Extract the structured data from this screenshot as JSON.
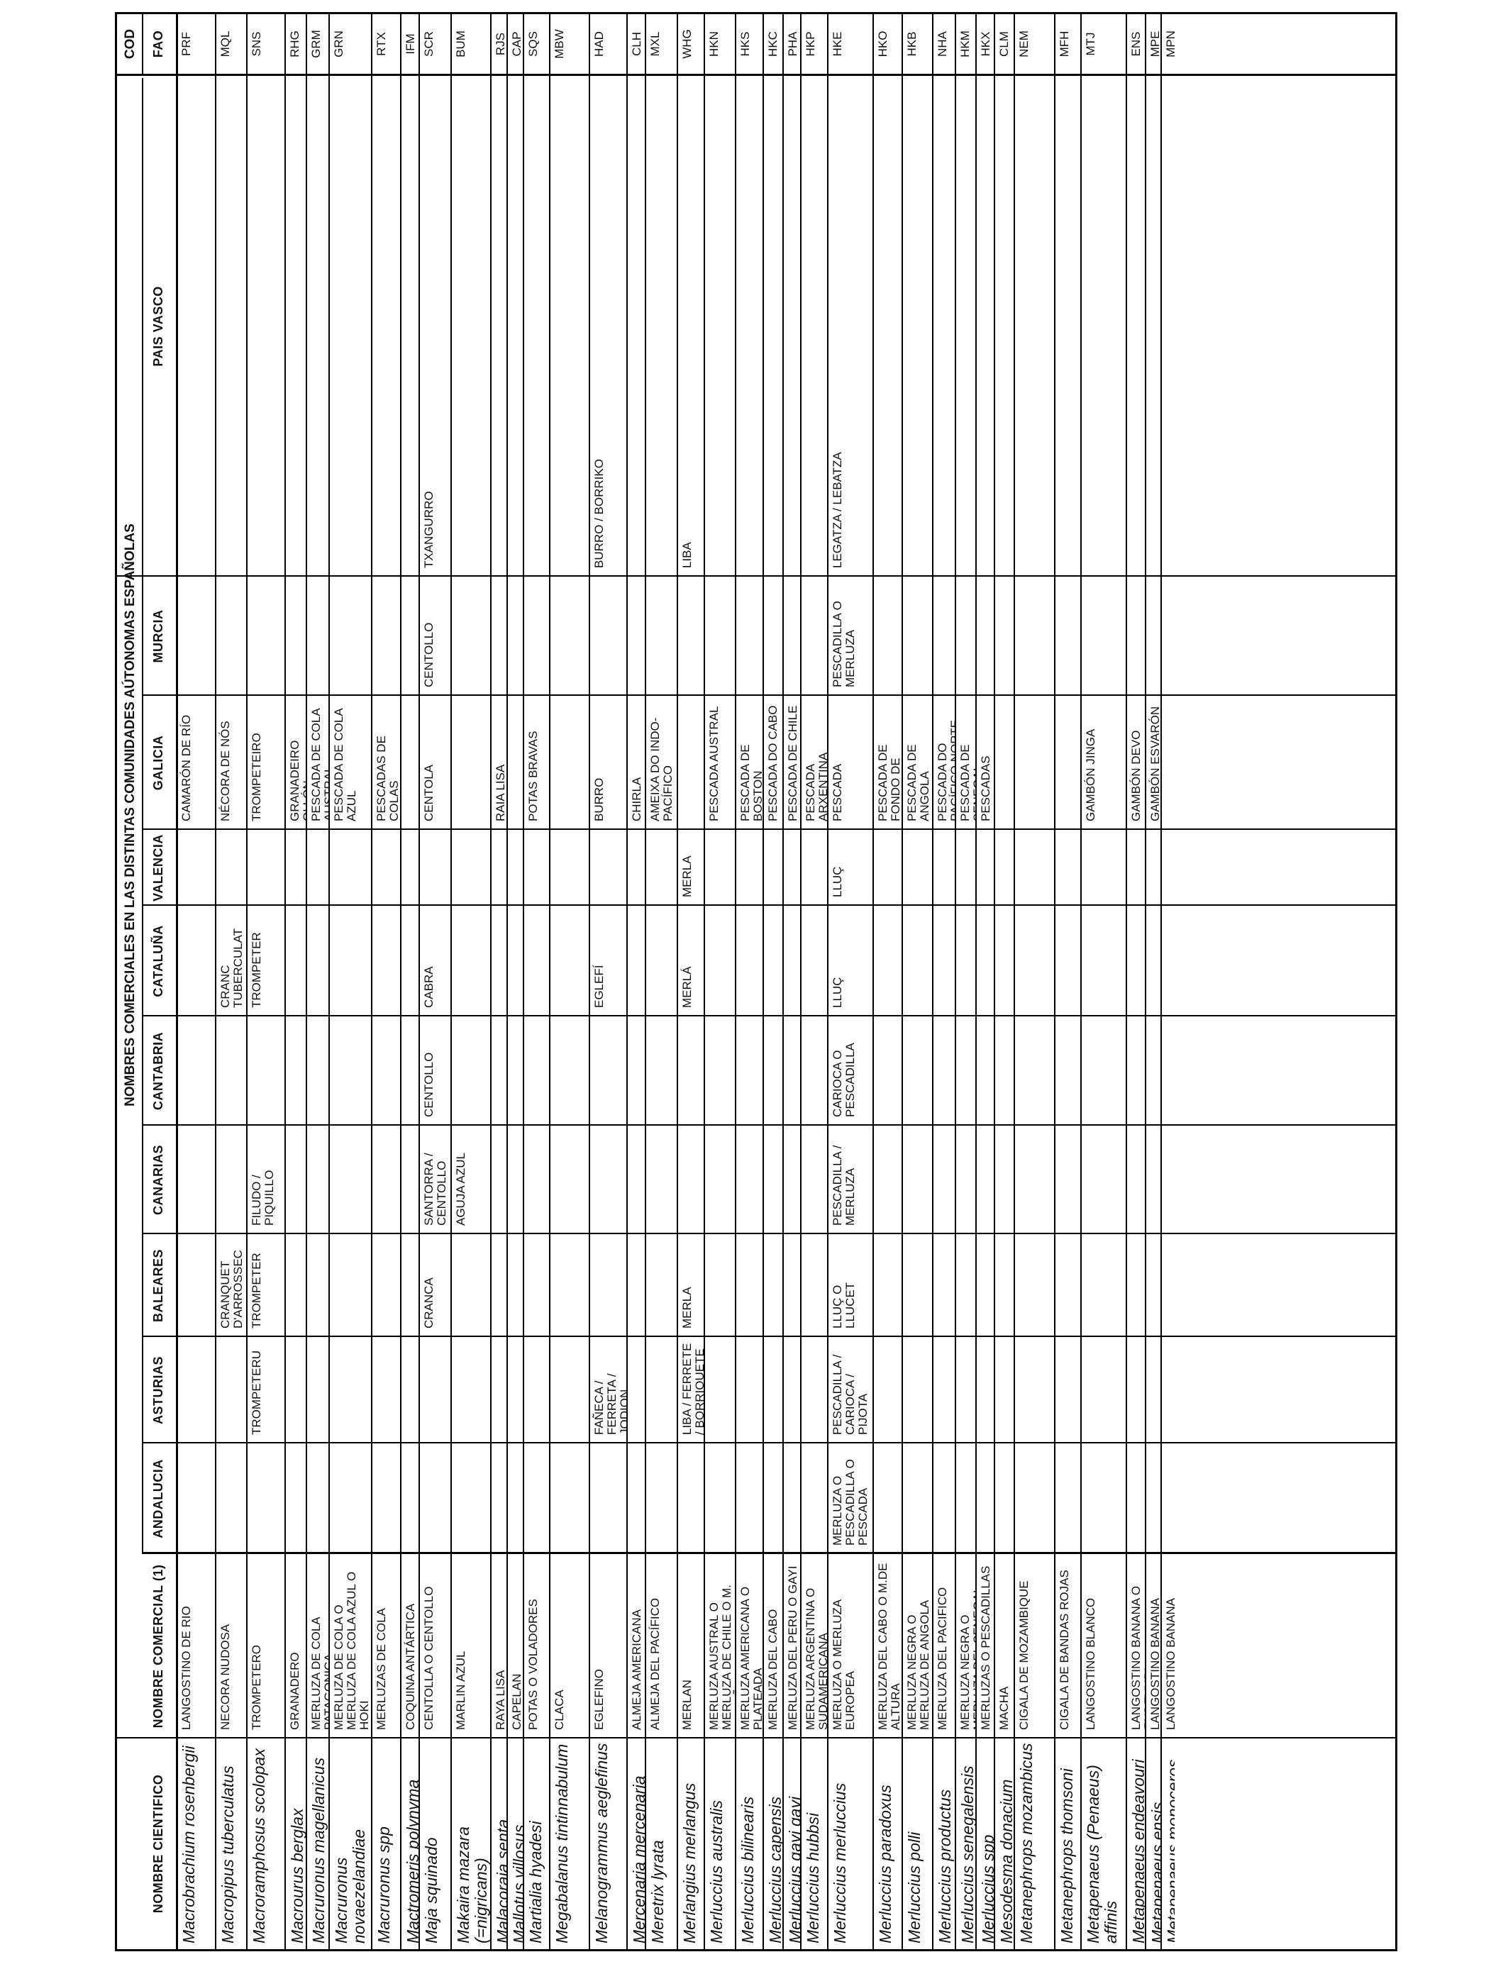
{
  "title": "NOMBRES COMERCIALES EN LAS DISTINTAS COMUNIDADES AÚTONOMAS ESPAÑOLAS",
  "cod_label": "COD",
  "columns": {
    "sci": "NOMBRE CIENTIFICO",
    "com": "NOMBRE COMERCIAL (1)",
    "andalucia": "ANDALUCIA",
    "asturias": "ASTURIAS",
    "baleares": "BALEARES",
    "canarias": "CANARIAS",
    "cantabria": "CANTABRIA",
    "cataluna": "CATALUÑA",
    "valencia": "VALENCIA",
    "galicia": "GALICIA",
    "murcia": "MURCIA",
    "paisvasco": "PAIS VASCO",
    "fao": "FAO"
  },
  "rows": [
    {
      "sci": "Macrobrachium rosenbergii",
      "com": "LANGOSTINO DE RIO",
      "andalucia": "",
      "asturias": "",
      "baleares": "",
      "canarias": "",
      "cantabria": "",
      "cataluna": "",
      "valencia": "",
      "galicia": "CAMARÓN DE RÍO",
      "murcia": "",
      "paisvasco": "",
      "fao": "PRF"
    },
    {
      "sci": "Macropipus tuberculatus",
      "com": "NECORA NUDOSA",
      "andalucia": "",
      "asturias": "",
      "baleares": "CRANQUET D'ARROSSEC",
      "canarias": "",
      "cantabria": "",
      "cataluna": "CRANC TUBERCULAT",
      "valencia": "",
      "galicia": "NÉCORA DE NÓS",
      "murcia": "",
      "paisvasco": "",
      "fao": "MQL"
    },
    {
      "sci": "Macroramphosus scolopax",
      "com": "TROMPETERO",
      "andalucia": "",
      "asturias": "TROMPETERU",
      "baleares": "TROMPETER",
      "canarias": "FILUDO / PIQUILLO",
      "cantabria": "",
      "cataluna": "TROMPETER",
      "valencia": "",
      "galicia": "TROMPETEIRO",
      "murcia": "",
      "paisvasco": "",
      "fao": "SNS"
    },
    {
      "sci": "Macrourus berglax",
      "com": "GRANADERO",
      "andalucia": "",
      "asturias": "",
      "baleares": "",
      "canarias": "",
      "cantabria": "",
      "cataluna": "",
      "valencia": "",
      "galicia": "GRANADEIRO OLLÓN",
      "murcia": "",
      "paisvasco": "",
      "fao": "RHG"
    },
    {
      "sci": "Macruronus magellanicus",
      "com": "MERLUZA DE COLA PATAGONICA",
      "andalucia": "",
      "asturias": "",
      "baleares": "",
      "canarias": "",
      "cantabria": "",
      "cataluna": "",
      "valencia": "",
      "galicia": "PESCADA DE COLA AUSTRAL",
      "murcia": "",
      "paisvasco": "",
      "fao": "GRM"
    },
    {
      "sci": "Macruronus novaezelandiae",
      "com": "MERLUZA DE COLA  O  MERLUZA DE COLA AZUL O HOKI",
      "andalucia": "",
      "asturias": "",
      "baleares": "",
      "canarias": "",
      "cantabria": "",
      "cataluna": "",
      "valencia": "",
      "galicia": "PESCADA DE COLA AZUL",
      "murcia": "",
      "paisvasco": "",
      "fao": "GRN"
    },
    {
      "sci": "Macruronus  spp",
      "com": "MERLUZAS DE COLA",
      "andalucia": "",
      "asturias": "",
      "baleares": "",
      "canarias": "",
      "cantabria": "",
      "cataluna": "",
      "valencia": "",
      "galicia": "PESCADAS DE COLAS",
      "murcia": "",
      "paisvasco": "",
      "fao": "RTX"
    },
    {
      "sci": "Mactromeris polynyma",
      "com": "COQUINA ANTÁRTICA",
      "andalucia": "",
      "asturias": "",
      "baleares": "",
      "canarias": "",
      "cantabria": "",
      "cataluna": "",
      "valencia": "",
      "galicia": "",
      "murcia": "",
      "paisvasco": "",
      "fao": "IFM"
    },
    {
      "sci": "Maja squinado",
      "com": "CENTOLLA O CENTOLLO",
      "andalucia": "",
      "asturias": "",
      "baleares": "CRANCA",
      "canarias": "SANTORRA / CENTOLLO",
      "cantabria": "CENTOLLO",
      "cataluna": "CABRA",
      "valencia": "",
      "galicia": "CENTOLA",
      "murcia": "CENTOLLO",
      "paisvasco": "TXANGURRO",
      "fao": "SCR"
    },
    {
      "sci": "Makaira mazara (=nigricans)",
      "com": "MARLIN AZUL",
      "andalucia": "",
      "asturias": "",
      "baleares": "",
      "canarias": "AGUJA AZUL",
      "cantabria": "",
      "cataluna": "",
      "valencia": "",
      "galicia": "",
      "murcia": "",
      "paisvasco": "",
      "fao": "BUM"
    },
    {
      "sci": "Malacoraja senta",
      "com": "RAYA LISA",
      "andalucia": "",
      "asturias": "",
      "baleares": "",
      "canarias": "",
      "cantabria": "",
      "cataluna": "",
      "valencia": "",
      "galicia": "RAIA LISA",
      "murcia": "",
      "paisvasco": "",
      "fao": "RJS"
    },
    {
      "sci": "Mallotus villosus",
      "com": "CAPELAN",
      "andalucia": "",
      "asturias": "",
      "baleares": "",
      "canarias": "",
      "cantabria": "",
      "cataluna": "",
      "valencia": "",
      "galicia": "",
      "murcia": "",
      "paisvasco": "",
      "fao": "CAP"
    },
    {
      "sci": "Martialia hyadesi",
      "com": "POTAS O VOLADORES",
      "andalucia": "",
      "asturias": "",
      "baleares": "",
      "canarias": "",
      "cantabria": "",
      "cataluna": "",
      "valencia": "",
      "galicia": "POTAS BRAVAS",
      "murcia": "",
      "paisvasco": "",
      "fao": "SQS"
    },
    {
      "sci": "Megabalanus tintinnabulum",
      "com": "CLACA",
      "andalucia": "",
      "asturias": "",
      "baleares": "",
      "canarias": "",
      "cantabria": "",
      "cataluna": "",
      "valencia": "",
      "galicia": "",
      "murcia": "",
      "paisvasco": "",
      "fao": "MBW"
    },
    {
      "sci": "Melanogrammus aeglefinus",
      "com": "EGLEFINO",
      "andalucia": "",
      "asturias": "FAÑECA / FERRETA / JODION",
      "baleares": "",
      "canarias": "",
      "cantabria": "",
      "cataluna": "EGLEFÍ",
      "valencia": "",
      "galicia": "BURRO",
      "murcia": "",
      "paisvasco": "BURRO / BORRIKO",
      "fao": "HAD"
    },
    {
      "sci": "Mercenaria mercenaria",
      "com": "ALMEJA AMERICANA",
      "andalucia": "",
      "asturias": "",
      "baleares": "",
      "canarias": "",
      "cantabria": "",
      "cataluna": "",
      "valencia": "",
      "galicia": "CHIRLA MERCENARIA",
      "murcia": "",
      "paisvasco": "",
      "fao": "CLH"
    },
    {
      "sci": "Meretrix lyrata",
      "com": "ALMEJA DEL PACÍFICO",
      "andalucia": "",
      "asturias": "",
      "baleares": "",
      "canarias": "",
      "cantabria": "",
      "cataluna": "",
      "valencia": "",
      "galicia": "AMEIXA DO INDO-PACÍFICO",
      "murcia": "",
      "paisvasco": "",
      "fao": "MXL"
    },
    {
      "sci": "Merlangius merlangus",
      "com": "MERLAN",
      "andalucia": "",
      "asturias": "LIBA / FERRETE / BORRIQUETE",
      "baleares": "MERLA",
      "canarias": "",
      "cantabria": "",
      "cataluna": "MERLÁ",
      "valencia": "MERLA",
      "galicia": "",
      "murcia": "",
      "paisvasco": "LIBA",
      "fao": "WHG"
    },
    {
      "sci": "Merluccius australis",
      "com": "MERLUZA AUSTRAL O MERLUZA DE CHILE O M. SUREÑA",
      "andalucia": "",
      "asturias": "",
      "baleares": "",
      "canarias": "",
      "cantabria": "",
      "cataluna": "",
      "valencia": "",
      "galicia": "PESCADA AUSTRAL",
      "murcia": "",
      "paisvasco": "",
      "fao": "HKN"
    },
    {
      "sci": "Merluccius bilinearis",
      "com": "MERLUZA AMERICANA O PLATEADA",
      "andalucia": "",
      "asturias": "",
      "baleares": "",
      "canarias": "",
      "cantabria": "",
      "cataluna": "",
      "valencia": "",
      "galicia": "PESCADA DE BOSTON",
      "murcia": "",
      "paisvasco": "",
      "fao": "HKS"
    },
    {
      "sci": "Merluccius capensis",
      "com": "MERLUZA DEL CABO",
      "andalucia": "",
      "asturias": "",
      "baleares": "",
      "canarias": "",
      "cantabria": "",
      "cataluna": "",
      "valencia": "",
      "galicia": "PESCADA DO CABO",
      "murcia": "",
      "paisvasco": "",
      "fao": "HKC"
    },
    {
      "sci": "Merluccius gayi gayi",
      "com": "MERLUZA DEL PERU O GAYI",
      "andalucia": "",
      "asturias": "",
      "baleares": "",
      "canarias": "",
      "cantabria": "",
      "cataluna": "",
      "valencia": "",
      "galicia": "PESCADA DE CHILE",
      "murcia": "",
      "paisvasco": "",
      "fao": "PHA"
    },
    {
      "sci": "Merluccius hubbsi",
      "com": "MERLUZA ARGENTINA O SUDAMERICANA",
      "andalucia": "",
      "asturias": "",
      "baleares": "",
      "canarias": "",
      "cantabria": "",
      "cataluna": "",
      "valencia": "",
      "galicia": "PESCADA ARXENTINA",
      "murcia": "",
      "paisvasco": "",
      "fao": "HKP"
    },
    {
      "sci": "Merluccius merluccius",
      "com": "MERLUZA O MERLUZA EUROPEA",
      "andalucia": "MERLUZA O PESCADILLA O PESCADA",
      "asturias": "PESCADILLA / CARIOCA / PIJOTA",
      "baleares": "LLUÇ O LLUCET",
      "canarias": "PESCADILLA / MERLUZA",
      "cantabria": "CARIOCA O PESCADILLA",
      "cataluna": "LLUÇ",
      "valencia": "LLUÇ",
      "galicia": "PESCADA",
      "murcia": "PESCADILLA O MERLUZA",
      "paisvasco": "LEGATZA / LEBATZA",
      "fao": "HKE"
    },
    {
      "sci": "Merluccius paradoxus",
      "com": "MERLUZA DEL CABO O M.DE ALTURA",
      "andalucia": "",
      "asturias": "",
      "baleares": "",
      "canarias": "",
      "cantabria": "",
      "cataluna": "",
      "valencia": "",
      "galicia": "PESCADA DE FONDO DE SUDAFRICA",
      "murcia": "",
      "paisvasco": "",
      "fao": "HKO"
    },
    {
      "sci": "Merluccius polli",
      "com": "MERLUZA NEGRA O MERLUZA DE ANGOLA",
      "andalucia": "",
      "asturias": "",
      "baleares": "",
      "canarias": "",
      "cantabria": "",
      "cataluna": "",
      "valencia": "",
      "galicia": "PESCADA DE ANGOLA",
      "murcia": "",
      "paisvasco": "",
      "fao": "HKB"
    },
    {
      "sci": "Merluccius productus",
      "com": "MERLUZA DEL PACIFICO",
      "andalucia": "",
      "asturias": "",
      "baleares": "",
      "canarias": "",
      "cantabria": "",
      "cataluna": "",
      "valencia": "",
      "galicia": "PESCADA DO PACÍFICO NORTE",
      "murcia": "",
      "paisvasco": "",
      "fao": "NHA"
    },
    {
      "sci": "Merluccius senegalensis",
      "com": "MERLUZA NEGRA O MERLUZA DEL SENEGAL",
      "andalucia": "",
      "asturias": "",
      "baleares": "",
      "canarias": "",
      "cantabria": "",
      "cataluna": "",
      "valencia": "",
      "galicia": "PESCADA DE SENEGAL",
      "murcia": "",
      "paisvasco": "",
      "fao": "HKM"
    },
    {
      "sci": "Merluccius  spp",
      "com": "MERLUZAS O PESCADILLAS",
      "andalucia": "",
      "asturias": "",
      "baleares": "",
      "canarias": "",
      "cantabria": "",
      "cataluna": "",
      "valencia": "",
      "galicia": "PESCADAS",
      "murcia": "",
      "paisvasco": "",
      "fao": "HKX"
    },
    {
      "sci": "Mesodesma donacium",
      "com": "MACHA",
      "andalucia": "",
      "asturias": "",
      "baleares": "",
      "canarias": "",
      "cantabria": "",
      "cataluna": "",
      "valencia": "",
      "galicia": "",
      "murcia": "",
      "paisvasco": "",
      "fao": "CLM"
    },
    {
      "sci": "Metanephrops mozambicus",
      "com": "CIGALA DE MOZAMBIQUE",
      "andalucia": "",
      "asturias": "",
      "baleares": "",
      "canarias": "",
      "cantabria": "",
      "cataluna": "",
      "valencia": "",
      "galicia": "",
      "murcia": "",
      "paisvasco": "",
      "fao": "NEM"
    },
    {
      "sci": "Metanephrops thomsoni",
      "com": "CIGALA DE BANDAS ROJAS",
      "andalucia": "",
      "asturias": "",
      "baleares": "",
      "canarias": "",
      "cantabria": "",
      "cataluna": "",
      "valencia": "",
      "galicia": "",
      "murcia": "",
      "paisvasco": "",
      "fao": "MFH"
    },
    {
      "sci": "Metapenaeus (Penaeus) affinis",
      "com": "LANGOSTINO BLANCO",
      "andalucia": "",
      "asturias": "",
      "baleares": "",
      "canarias": "",
      "cantabria": "",
      "cataluna": "",
      "valencia": "",
      "galicia": "GAMBÓN JINGA",
      "murcia": "",
      "paisvasco": "",
      "fao": "MTJ"
    },
    {
      "sci": "Metapenaeus endeavouri",
      "com": "LANGOSTINO BANANA O ENDEVURI",
      "andalucia": "",
      "asturias": "",
      "baleares": "",
      "canarias": "",
      "cantabria": "",
      "cataluna": "",
      "valencia": "",
      "galicia": "GAMBÓN DEVO",
      "murcia": "",
      "paisvasco": "",
      "fao": "ENS"
    },
    {
      "sci": "Metapenaeus ensis",
      "com": "LANGOSTINO BANANA",
      "andalucia": "",
      "asturias": "",
      "baleares": "",
      "canarias": "",
      "cantabria": "",
      "cataluna": "",
      "valencia": "",
      "galicia": "GAMBÓN ESVARÓN",
      "murcia": "",
      "paisvasco": "",
      "fao": "MPE"
    },
    {
      "sci": "Metapenaeus monoceros",
      "com": "LANGOSTINO BANANA",
      "andalucia": "",
      "asturias": "",
      "baleares": "",
      "canarias": "",
      "cantabria": "",
      "cataluna": "",
      "valencia": "",
      "galicia": "",
      "murcia": "",
      "paisvasco": "",
      "fao": "MPN"
    }
  ]
}
